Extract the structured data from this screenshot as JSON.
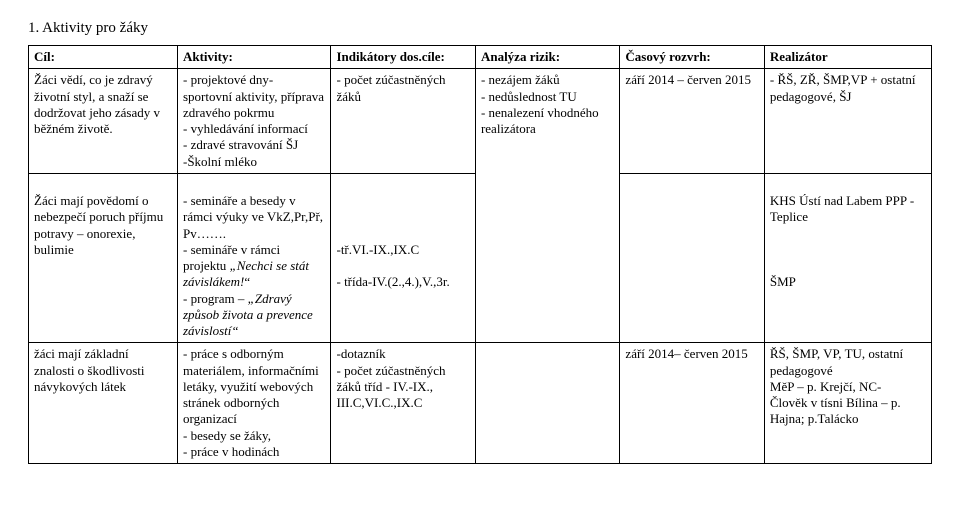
{
  "section_title": "1.  Aktivity pro žáky",
  "headers": {
    "cil": "Cíl:",
    "akt": "Aktivity:",
    "ind": "Indikátory dos.cíle:",
    "anal": "Analýza rizik:",
    "cas": "Časový rozvrh:",
    "real": "Realizátor"
  },
  "row1": {
    "cil": "Žáci vědí, co je zdravý životní styl, a snaží se dodržovat jeho zásady v běžném životě.",
    "akt": "- projektové dny- sportovní aktivity, příprava zdravého pokrmu\n- vyhledávání informací\n- zdravé stravování ŠJ\n-Školní mléko",
    "ind": "- počet zúčastněných žáků",
    "anal": "- nezájem žáků\n- nedůslednost TU\n- nenalezení vhodného realizátora",
    "cas": "září 2014 – červen 2015",
    "real": "- ŘŠ, ZŘ, ŠMP,VP + ostatní pedagogové, ŠJ"
  },
  "row2": {
    "cil": "Žáci mají povědomí o nebezpečí poruch příjmu potravy – onorexie, bulimie",
    "akt": "- semináře a besedy v rámci výuky ve VkZ,Pr,Př, Pv…….\n- semináře v rámci projektu „Nechci se stát závislákem!“\n- program – „Zdravý způsob života a prevence závislostí“",
    "ind_a": "-tř.VI.-IX.,IX.C",
    "ind_b": "- třída-IV.(2.,4.),V.,3r.",
    "real": "KHS Ústí nad Labem PPP -Teplice\n\n\n\nŠMP"
  },
  "row3": {
    "cil": "žáci mají základní znalosti o škodlivosti návykových látek",
    "akt": "- práce s odborným materiálem, informačními letáky, využití webových stránek odborných organizací\n- besedy se žáky,\n- práce v hodinách",
    "ind": "-dotazník\n- počet zúčastněných žáků tříd -  IV.-IX., III.C,VI.C.,IX.C",
    "cas": "září 2014– červen 2015",
    "real": "ŘŠ, ŠMP, VP, TU, ostatní pedagogové\nMěP – p.  Krejčí, NC-\nČlověk v tísni Bílina – p.  Hajna; p.Talácko"
  }
}
